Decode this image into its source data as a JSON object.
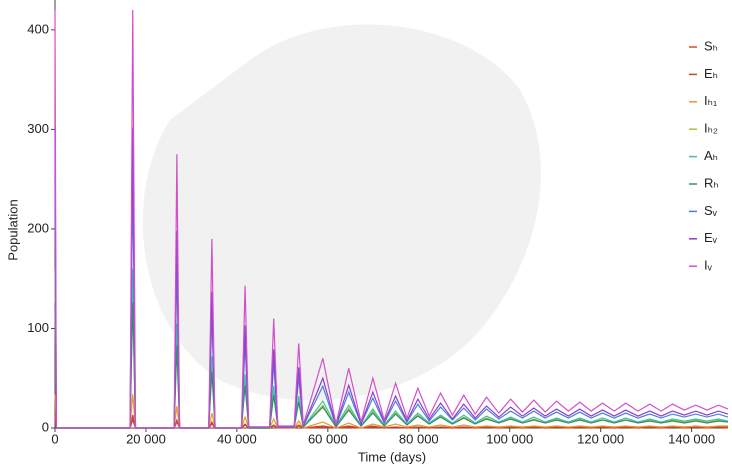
{
  "chart_data": {
    "type": "line",
    "x_label": "Time (days)",
    "y_label": "Population",
    "xlim": [
      0,
      148000
    ],
    "ylim": [
      0,
      430
    ],
    "xticks": [
      0,
      {
        "value": 20000,
        "label": "20 000"
      },
      {
        "value": 40000,
        "label": "40 000"
      },
      {
        "value": 60000,
        "label": "60 000"
      },
      {
        "value": 80000,
        "label": "80 000"
      },
      {
        "value": 100000,
        "label": "100 000"
      },
      {
        "value": 120000,
        "label": "120 000"
      },
      {
        "value": 140000,
        "label": "140 000"
      }
    ],
    "yticks": [
      0,
      100,
      200,
      300,
      400
    ],
    "grid": false,
    "legend": "right",
    "x": [
      0,
      300,
      16500,
      17100,
      17700,
      26200,
      26800,
      27400,
      33800,
      34500,
      35200,
      41000,
      41800,
      42600,
      47200,
      48100,
      49000,
      52600,
      53600,
      54600,
      58900,
      61800,
      64600,
      67300,
      69900,
      72400,
      74900,
      77400,
      79800,
      82300,
      84800,
      87400,
      89900,
      92400,
      94900,
      97600,
      100200,
      102800,
      105300,
      107800,
      110300,
      112900,
      115400,
      117900,
      120400,
      123000,
      125500,
      128200,
      130800,
      133300,
      135800,
      138400,
      140900,
      143400,
      145900,
      148000
    ],
    "series": [
      {
        "name": "Sₕ",
        "color": "#d94a2e",
        "values": [
          8,
          0,
          0,
          8,
          0,
          0,
          6,
          0,
          0,
          4,
          0,
          0,
          3,
          0,
          0,
          2,
          0,
          0,
          2,
          0,
          1,
          0,
          1,
          0,
          1,
          0,
          1,
          0,
          1,
          0,
          1,
          0,
          1,
          0,
          1,
          0,
          1,
          0,
          1,
          0,
          1,
          0,
          1,
          0,
          1,
          0,
          1,
          0,
          1,
          0,
          1,
          0,
          1,
          0,
          1,
          0
        ]
      },
      {
        "name": "Eₕ",
        "color": "#c8452a",
        "values": [
          13,
          0,
          0,
          13,
          0,
          0,
          8,
          0,
          0,
          6,
          0,
          0,
          4,
          0,
          0,
          3,
          0,
          0,
          3,
          0,
          2,
          0,
          2,
          0,
          2,
          0,
          1,
          0,
          1,
          0,
          1,
          0,
          1,
          0,
          1,
          0,
          1,
          0,
          1,
          0,
          1,
          0,
          1,
          0,
          1,
          0,
          1,
          0,
          1,
          0,
          1,
          1,
          1,
          1,
          1,
          1
        ]
      },
      {
        "name": "Iₕ₁",
        "color": "#e89a2a",
        "values": [
          34,
          0,
          0,
          34,
          0,
          0,
          22,
          0,
          0,
          15,
          0,
          0,
          11,
          0,
          0,
          9,
          0,
          0,
          7,
          0,
          6,
          0,
          5,
          0,
          4,
          1,
          4,
          1,
          3,
          1,
          3,
          1,
          3,
          1,
          2,
          1,
          2,
          1,
          2,
          1,
          2,
          1,
          2,
          1,
          2,
          1,
          2,
          1,
          2,
          1,
          2,
          1,
          2,
          1,
          2,
          2
        ]
      },
      {
        "name": "Iₕ₂",
        "color": "#a8c23c",
        "values": [
          139,
          0,
          0,
          139,
          0,
          0,
          91,
          0,
          0,
          63,
          0,
          0,
          47,
          0,
          0,
          36,
          1,
          1,
          28,
          1,
          23,
          1,
          20,
          2,
          17,
          3,
          15,
          3,
          13,
          4,
          12,
          4,
          11,
          5,
          10,
          5,
          10,
          5,
          9,
          5,
          9,
          6,
          9,
          6,
          8,
          6,
          8,
          6,
          8,
          6,
          8,
          6,
          8,
          6,
          8,
          6
        ]
      },
      {
        "name": "Aₕ",
        "color": "#3cc4a2",
        "values": [
          160,
          0,
          0,
          160,
          0,
          0,
          105,
          0,
          0,
          72,
          0,
          0,
          54,
          0,
          0,
          42,
          1,
          1,
          32,
          1,
          27,
          2,
          23,
          2,
          19,
          3,
          17,
          4,
          15,
          5,
          13,
          5,
          13,
          5,
          12,
          6,
          11,
          6,
          11,
          6,
          10,
          6,
          10,
          6,
          10,
          6,
          10,
          6,
          9,
          6,
          9,
          7,
          9,
          7,
          9,
          7
        ]
      },
      {
        "name": "Rₕ",
        "color": "#3a8a72",
        "values": [
          126,
          0,
          0,
          126,
          0,
          0,
          83,
          0,
          0,
          57,
          0,
          0,
          43,
          0,
          0,
          33,
          1,
          1,
          26,
          1,
          21,
          1,
          18,
          2,
          15,
          2,
          14,
          3,
          12,
          4,
          11,
          4,
          10,
          4,
          9,
          5,
          9,
          5,
          8,
          5,
          8,
          5,
          8,
          5,
          8,
          5,
          8,
          5,
          7,
          5,
          7,
          5,
          7,
          5,
          7,
          6
        ]
      },
      {
        "name": "Sᵥ",
        "color": "#4a7fda",
        "values": [
          252,
          0,
          0,
          252,
          0,
          0,
          165,
          0,
          0,
          114,
          0,
          0,
          86,
          1,
          1,
          66,
          1,
          1,
          51,
          2,
          42,
          2,
          36,
          4,
          30,
          5,
          27,
          6,
          24,
          7,
          21,
          8,
          20,
          8,
          19,
          9,
          17,
          10,
          17,
          10,
          16,
          10,
          16,
          10,
          15,
          10,
          15,
          10,
          14,
          10,
          14,
          11,
          14,
          11,
          14,
          11
        ]
      },
      {
        "name": "Eᵥ",
        "color": "#8a3fd2",
        "values": [
          302,
          0,
          0,
          302,
          0,
          0,
          198,
          0,
          0,
          137,
          0,
          0,
          103,
          1,
          1,
          79,
          1,
          1,
          61,
          2,
          50,
          3,
          43,
          4,
          36,
          6,
          32,
          7,
          29,
          9,
          25,
          9,
          24,
          10,
          22,
          11,
          21,
          12,
          20,
          12,
          19,
          12,
          19,
          12,
          18,
          12,
          18,
          12,
          17,
          12,
          17,
          13,
          17,
          13,
          17,
          14
        ]
      },
      {
        "name": "Iᵥ",
        "color": "#d24fca",
        "values": [
          420,
          0,
          0,
          420,
          0,
          0,
          275,
          0,
          0,
          190,
          0,
          0,
          143,
          1,
          1,
          110,
          2,
          2,
          85,
          3,
          70,
          4,
          60,
          6,
          50,
          8,
          45,
          10,
          40,
          12,
          35,
          13,
          33,
          14,
          31,
          15,
          29,
          16,
          28,
          16,
          27,
          17,
          26,
          17,
          25,
          17,
          25,
          17,
          24,
          17,
          24,
          18,
          23,
          18,
          23,
          19
        ]
      }
    ]
  }
}
